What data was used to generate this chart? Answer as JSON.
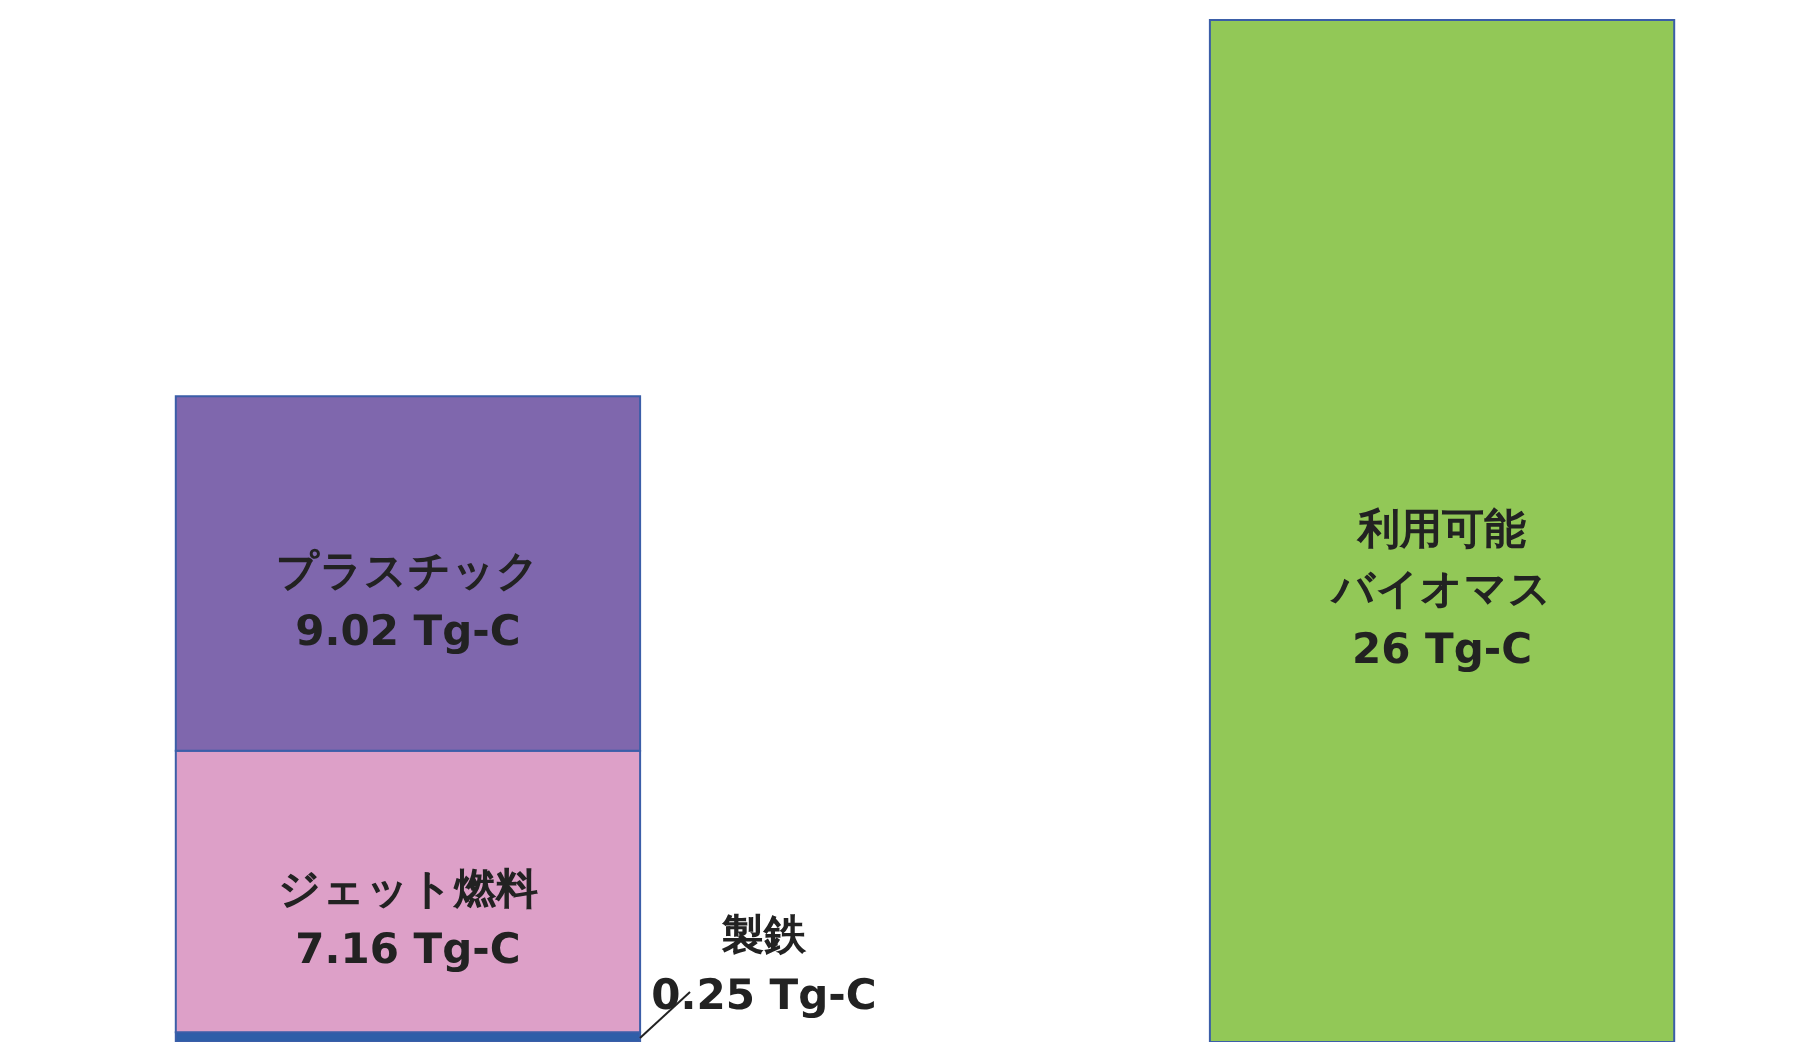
{
  "chart_data": {
    "type": "bar",
    "stacked": true,
    "categories": [
      null,
      null
    ],
    "series": [
      {
        "name": "製鉄",
        "color": "#2f5ea8",
        "values": [
          0.25,
          null
        ],
        "value_labels": [
          "0.25 Tg-C",
          null
        ]
      },
      {
        "name": "ジェット燃料",
        "color": "#dda0c8",
        "values": [
          7.16,
          null
        ],
        "value_labels": [
          "7.16 Tg-C",
          null
        ]
      },
      {
        "name": "プラスチック",
        "color": "#7f67ad",
        "values": [
          9.02,
          null
        ],
        "value_labels": [
          "9.02 Tg-C",
          null
        ]
      },
      {
        "name": "利用可能バイオマス",
        "color": "#92c857",
        "values": [
          null,
          26
        ],
        "value_labels": [
          null,
          "26 Tg-C"
        ]
      }
    ]
  }
}
